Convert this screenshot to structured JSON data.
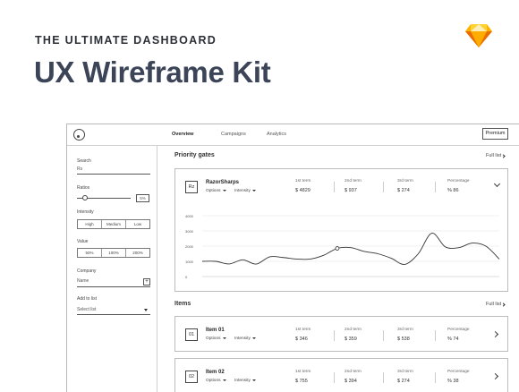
{
  "hero": {
    "kicker": "THE ULTIMATE DASHBOARD",
    "title": "UX Wireframe Kit"
  },
  "brand_icons": {
    "sketch": "sketch-diamond-icon",
    "logo": "circle-logo-icon"
  },
  "colors": {
    "sketch_light": "#fdd231",
    "sketch_mid": "#fdad00",
    "sketch_dark": "#ea6c00",
    "title": "#3c4558"
  },
  "nav": {
    "tabs": [
      "Overview",
      "Campaigns",
      "Analytics"
    ],
    "active_tab": "Overview",
    "premium_label": "Premium"
  },
  "sidebar": {
    "search_label": "Search",
    "search_value": "Rs",
    "ratios_label": "Ratios",
    "ratios_value": "5%",
    "ratios_level": 0.15,
    "intensity_label": "Intensity",
    "intensity_options": [
      "High",
      "Medium",
      "Low"
    ],
    "value_label": "Value",
    "value_options": [
      "50%",
      "100%",
      "200%"
    ],
    "company_label": "Company",
    "company_value": "Name",
    "add_label": "Add to list",
    "add_value": "Select list"
  },
  "priority": {
    "title": "Priority gates",
    "full_list": "Full list",
    "card": {
      "avatar": "Rz",
      "name": "RazorSharps",
      "options_label": "Options",
      "intensity_label": "Intensity",
      "stats": [
        {
          "label": "1st term",
          "value": "$ 4829"
        },
        {
          "label": "2nd term",
          "value": "$ 937"
        },
        {
          "label": "3rd term",
          "value": "$ 274"
        },
        {
          "label": "Percentage",
          "value": "% 86"
        }
      ]
    }
  },
  "chart_data": {
    "type": "line",
    "title": "",
    "xlabel": "",
    "ylabel": "",
    "y_ticks": [
      "4000",
      "3000",
      "2000",
      "1000",
      "0"
    ],
    "ylim": [
      0,
      4000
    ],
    "grid": true,
    "x": [
      0,
      1,
      2,
      3,
      4,
      5,
      6,
      7,
      8,
      9,
      10,
      11,
      12,
      13,
      14,
      15,
      16,
      17,
      18,
      19,
      20,
      21,
      22
    ],
    "values": [
      1000,
      1000,
      830,
      1100,
      820,
      1300,
      1250,
      1150,
      1150,
      1400,
      1850,
      1900,
      1650,
      1500,
      1200,
      800,
      1500,
      2850,
      1950,
      1900,
      2200,
      2000,
      1150
    ],
    "highlight_index": 10
  },
  "items": {
    "title": "Items",
    "full_list": "Full list",
    "rows": [
      {
        "avatar": "01",
        "name": "Item 01",
        "options_label": "Options",
        "intensity_label": "Intensity",
        "stats": [
          {
            "label": "1st term",
            "value": "$ 346"
          },
          {
            "label": "2nd term",
            "value": "$ 359"
          },
          {
            "label": "3rd term",
            "value": "$ 538"
          },
          {
            "label": "Percentage",
            "value": "% 74"
          }
        ]
      },
      {
        "avatar": "02",
        "name": "Item 02",
        "options_label": "Options",
        "intensity_label": "Intensity",
        "stats": [
          {
            "label": "1st term",
            "value": "$ 755"
          },
          {
            "label": "2nd term",
            "value": "$ 394"
          },
          {
            "label": "3rd term",
            "value": "$ 274"
          },
          {
            "label": "Percentage",
            "value": "% 38"
          }
        ]
      }
    ]
  }
}
